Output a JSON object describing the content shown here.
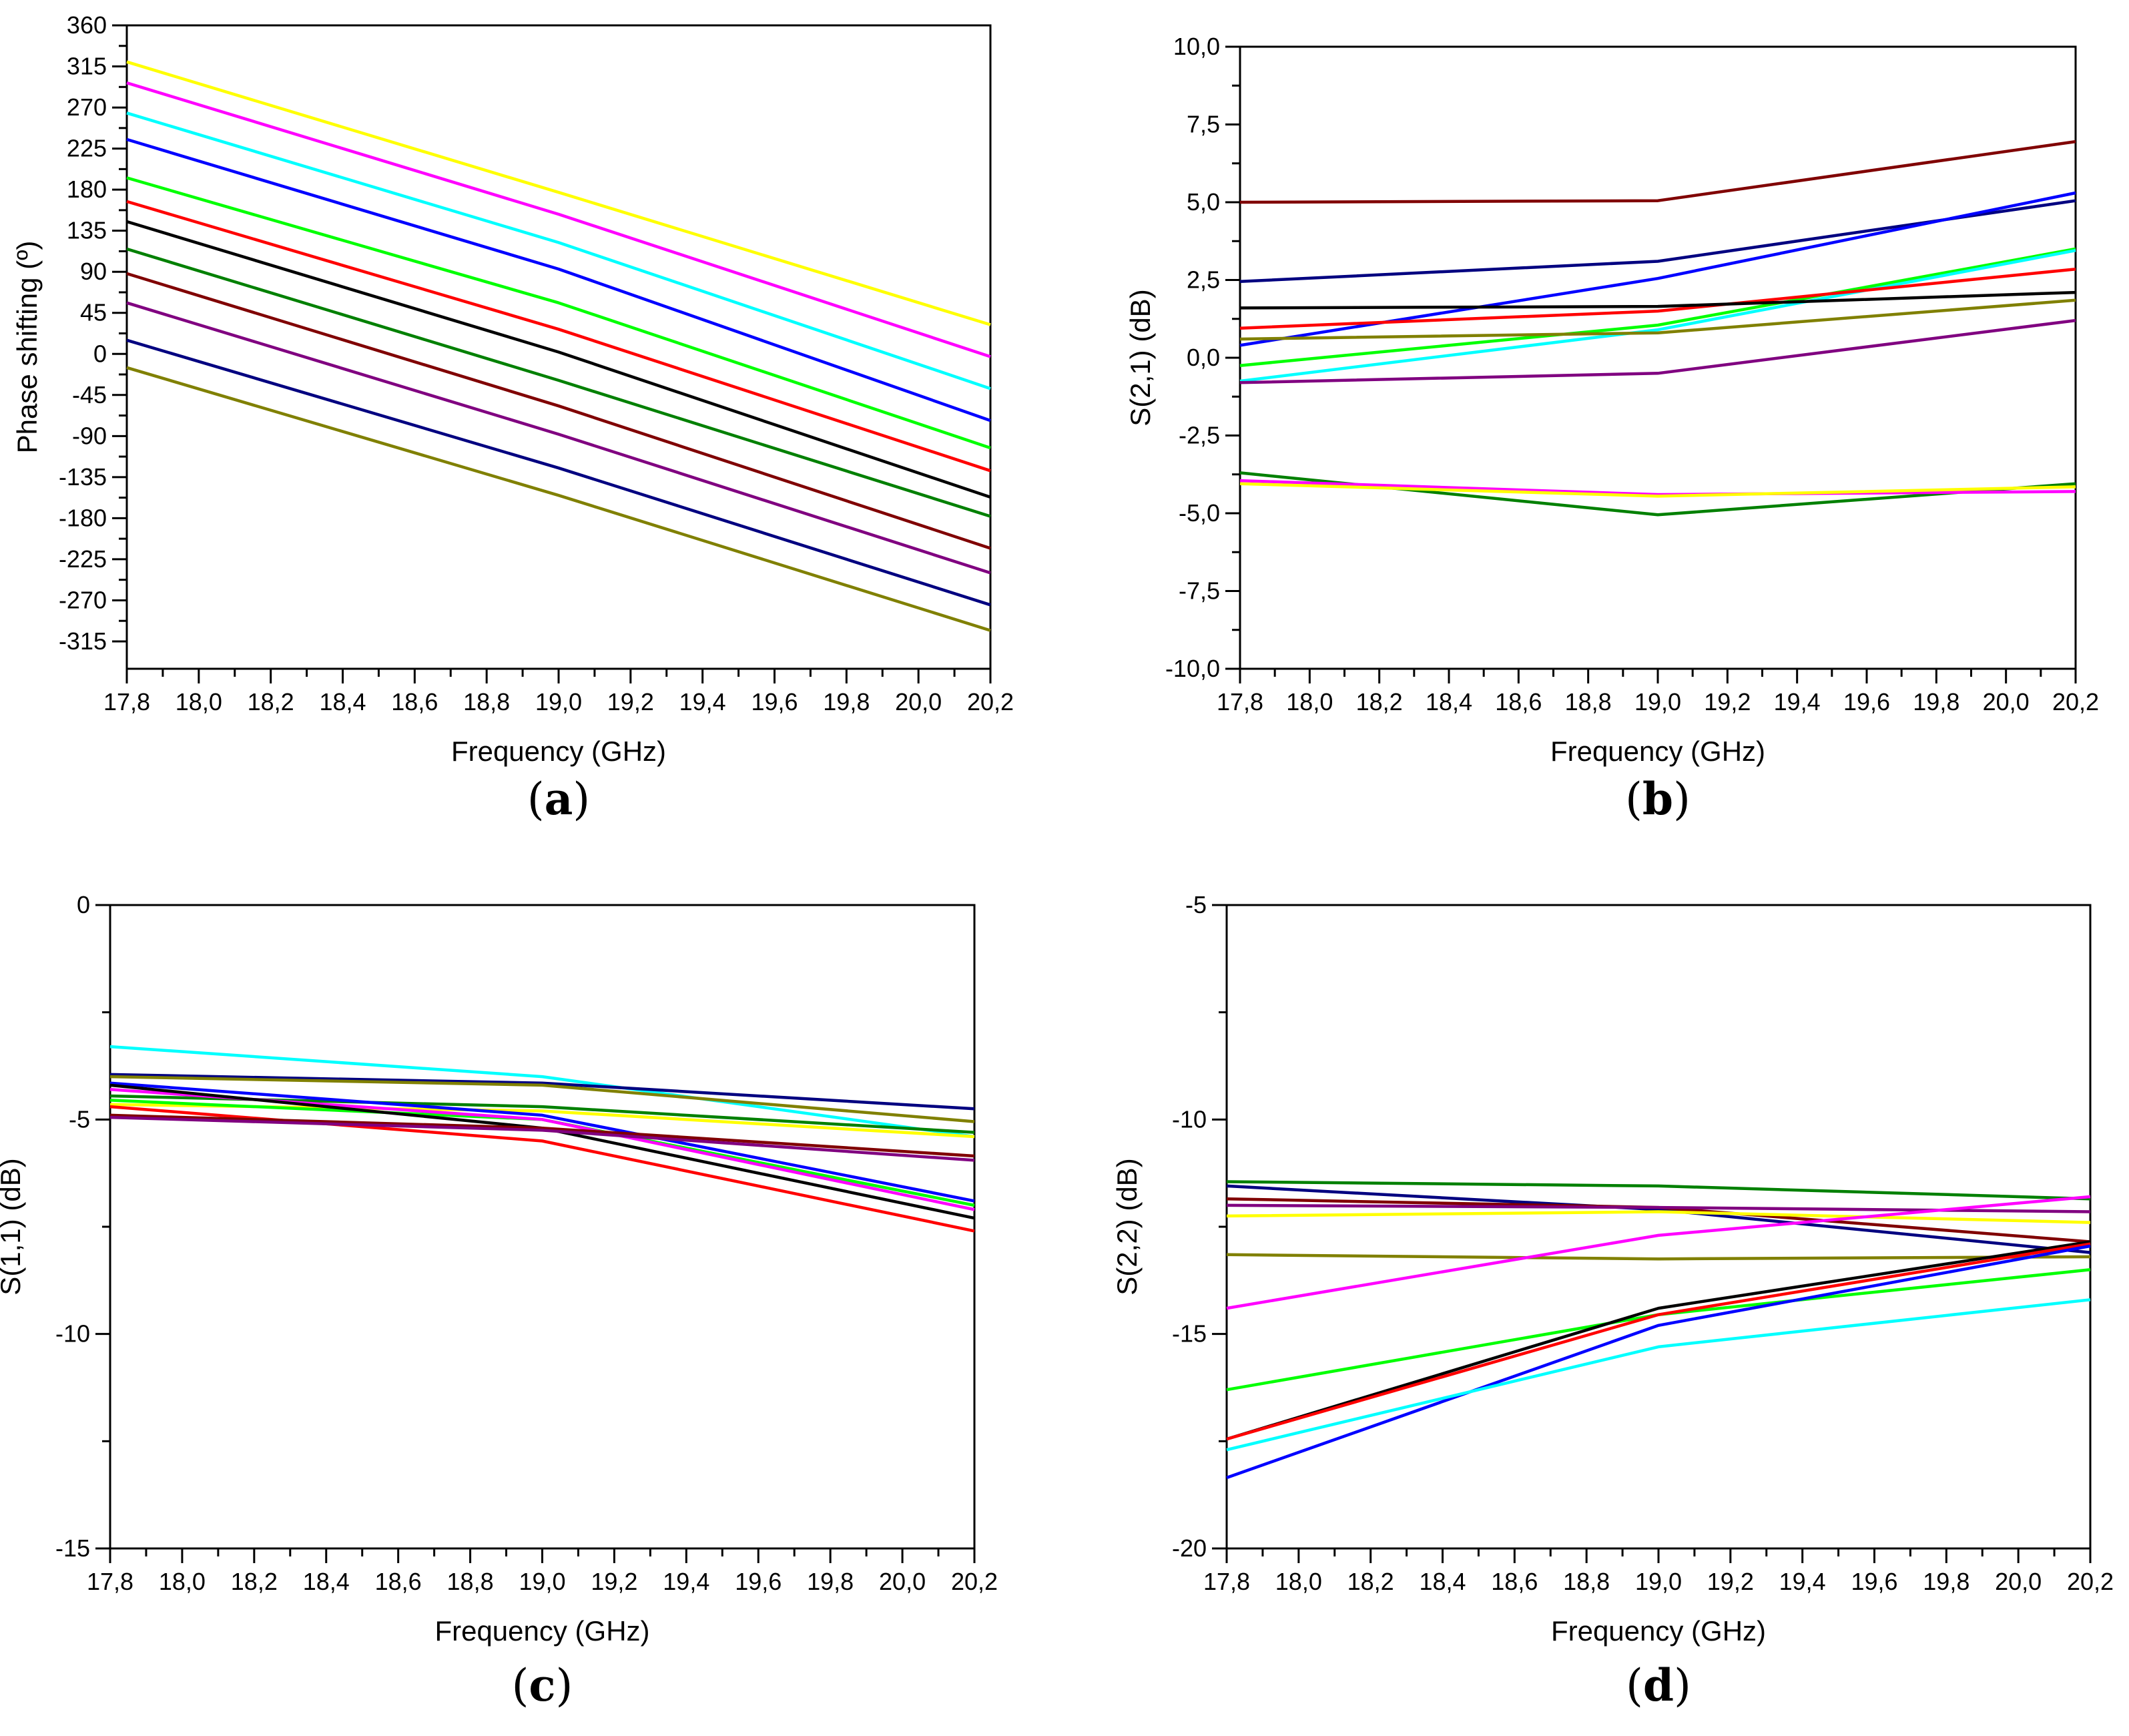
{
  "colors": {
    "yellow": "#ffff00",
    "magenta": "#ff00ff",
    "cyan": "#00ffff",
    "blue": "#0000ff",
    "lime": "#00ff00",
    "red": "#ff0000",
    "black": "#000000",
    "green": "#008000",
    "maroon": "#800000",
    "purple": "#800080",
    "navy": "#000080",
    "olive": "#808000"
  },
  "chart_data": [
    {
      "panel": "(a)",
      "type": "line",
      "xlabel": "Frequency (GHz)",
      "ylabel": "Phase shifting (º)",
      "xlim": [
        17.8,
        20.2
      ],
      "ylim": [
        -345,
        360
      ],
      "xticks": [
        "17,8",
        "18,0",
        "18,2",
        "18,4",
        "18,6",
        "18,8",
        "19,0",
        "19,2",
        "19,4",
        "19,6",
        "19,8",
        "20,0",
        "20,2"
      ],
      "yticks": [
        "360",
        "315",
        "270",
        "225",
        "180",
        "135",
        "90",
        "45",
        "0",
        "-45",
        "-90",
        "-135",
        "-180",
        "-225",
        "-270",
        "-315"
      ],
      "x": [
        17.8,
        19.0,
        20.2
      ],
      "series": [
        {
          "color": "yellow",
          "values": [
            320,
            177,
            32
          ]
        },
        {
          "color": "magenta",
          "values": [
            297,
            153,
            -3
          ]
        },
        {
          "color": "cyan",
          "values": [
            264,
            122,
            -38
          ]
        },
        {
          "color": "blue",
          "values": [
            235,
            93,
            -73
          ]
        },
        {
          "color": "lime",
          "values": [
            193,
            56,
            -103
          ]
        },
        {
          "color": "red",
          "values": [
            167,
            27,
            -128
          ]
        },
        {
          "color": "black",
          "values": [
            145,
            2,
            -157
          ]
        },
        {
          "color": "green",
          "values": [
            115,
            -29,
            -178
          ]
        },
        {
          "color": "maroon",
          "values": [
            88,
            -57,
            -213
          ]
        },
        {
          "color": "purple",
          "values": [
            56,
            -88,
            -240
          ]
        },
        {
          "color": "navy",
          "values": [
            15,
            -125,
            -275
          ]
        },
        {
          "color": "olive",
          "values": [
            -15,
            -155,
            -303
          ]
        }
      ]
    },
    {
      "panel": "(b)",
      "type": "line",
      "xlabel": "Frequency (GHz)",
      "ylabel": "S(2,1) (dB)",
      "xlim": [
        17.8,
        20.2
      ],
      "ylim": [
        -10,
        10
      ],
      "xticks": [
        "17,8",
        "18,0",
        "18,2",
        "18,4",
        "18,6",
        "18,8",
        "19,0",
        "19,2",
        "19,4",
        "19,6",
        "19,8",
        "20,0",
        "20,2"
      ],
      "yticks": [
        "10,0",
        "7,5",
        "5,0",
        "2,5",
        "0,0",
        "-2,5",
        "-5,0",
        "-7,5",
        "-10,0"
      ],
      "x": [
        17.8,
        19.0,
        20.2
      ],
      "series": [
        {
          "color": "maroon",
          "values": [
            5.0,
            5.05,
            6.95
          ]
        },
        {
          "color": "navy",
          "values": [
            2.45,
            3.1,
            5.05
          ]
        },
        {
          "color": "blue",
          "values": [
            0.4,
            2.55,
            5.3
          ]
        },
        {
          "color": "lime",
          "values": [
            -0.25,
            1.05,
            3.5
          ]
        },
        {
          "color": "cyan",
          "values": [
            -0.75,
            0.9,
            3.45
          ]
        },
        {
          "color": "red",
          "values": [
            0.95,
            1.5,
            2.85
          ]
        },
        {
          "color": "black",
          "values": [
            1.6,
            1.65,
            2.1
          ]
        },
        {
          "color": "olive",
          "values": [
            0.6,
            0.8,
            1.85
          ]
        },
        {
          "color": "purple",
          "values": [
            -0.8,
            -0.5,
            1.2
          ]
        },
        {
          "color": "green",
          "values": [
            -3.7,
            -5.05,
            -4.05
          ]
        },
        {
          "color": "magenta",
          "values": [
            -3.95,
            -4.4,
            -4.3
          ]
        },
        {
          "color": "yellow",
          "values": [
            -4.05,
            -4.45,
            -4.15
          ]
        }
      ]
    },
    {
      "panel": "(c)",
      "type": "line",
      "xlabel": "Frequency (GHz)",
      "ylabel": "S(1,1) (dB)",
      "xlim": [
        17.8,
        20.2
      ],
      "ylim": [
        -15,
        0
      ],
      "xticks": [
        "17,8",
        "18,0",
        "18,2",
        "18,4",
        "18,6",
        "18,8",
        "19,0",
        "19,2",
        "19,4",
        "19,6",
        "19,8",
        "20,0",
        "20,2"
      ],
      "yticks": [
        "0",
        "-5",
        "-10",
        "-15"
      ],
      "x": [
        17.8,
        19.0,
        20.2
      ],
      "series": [
        {
          "color": "cyan",
          "values": [
            -3.3,
            -4.0,
            -5.4
          ]
        },
        {
          "color": "navy",
          "values": [
            -3.95,
            -4.15,
            -4.75
          ]
        },
        {
          "color": "olive",
          "values": [
            -4.0,
            -4.2,
            -5.05
          ]
        },
        {
          "color": "green",
          "values": [
            -4.45,
            -4.7,
            -5.3
          ]
        },
        {
          "color": "yellow",
          "values": [
            -4.65,
            -4.8,
            -5.4
          ]
        },
        {
          "color": "blue",
          "values": [
            -4.15,
            -4.9,
            -6.9
          ]
        },
        {
          "color": "lime",
          "values": [
            -4.55,
            -5.0,
            -7.0
          ]
        },
        {
          "color": "magenta",
          "values": [
            -4.3,
            -5.0,
            -7.1
          ]
        },
        {
          "color": "black",
          "values": [
            -4.2,
            -5.2,
            -7.3
          ]
        },
        {
          "color": "red",
          "values": [
            -4.7,
            -5.5,
            -7.6
          ]
        },
        {
          "color": "maroon",
          "values": [
            -4.9,
            -5.2,
            -5.85
          ]
        },
        {
          "color": "purple",
          "values": [
            -4.95,
            -5.25,
            -5.95
          ]
        }
      ]
    },
    {
      "panel": "(d)",
      "type": "line",
      "xlabel": "Frequency (GHz)",
      "ylabel": "S(2,2) (dB)",
      "xlim": [
        17.8,
        20.2
      ],
      "ylim": [
        -20,
        -5
      ],
      "xticks": [
        "17,8",
        "18,0",
        "18,2",
        "18,4",
        "18,6",
        "18,8",
        "19,0",
        "19,2",
        "19,4",
        "19,6",
        "19,8",
        "20,0",
        "20,2"
      ],
      "yticks": [
        "-5",
        "-10",
        "-15",
        "-20"
      ],
      "x": [
        17.8,
        19.0,
        20.2
      ],
      "series": [
        {
          "color": "green",
          "values": [
            -11.45,
            -11.55,
            -11.85
          ]
        },
        {
          "color": "navy",
          "values": [
            -11.55,
            -12.1,
            -13.1
          ]
        },
        {
          "color": "maroon",
          "values": [
            -11.85,
            -12.05,
            -12.85
          ]
        },
        {
          "color": "purple",
          "values": [
            -12.0,
            -12.05,
            -12.15
          ]
        },
        {
          "color": "yellow",
          "values": [
            -12.25,
            -12.15,
            -12.4
          ]
        },
        {
          "color": "olive",
          "values": [
            -13.15,
            -13.25,
            -13.2
          ]
        },
        {
          "color": "magenta",
          "values": [
            -14.4,
            -12.7,
            -11.8
          ]
        },
        {
          "color": "lime",
          "values": [
            -16.3,
            -14.55,
            -13.5
          ]
        },
        {
          "color": "black",
          "values": [
            -17.45,
            -14.4,
            -12.85
          ]
        },
        {
          "color": "red",
          "values": [
            -17.45,
            -14.55,
            -12.9
          ]
        },
        {
          "color": "blue",
          "values": [
            -18.35,
            -14.8,
            -12.95
          ]
        },
        {
          "color": "cyan",
          "values": [
            -17.7,
            -15.3,
            -14.2
          ]
        }
      ]
    }
  ]
}
